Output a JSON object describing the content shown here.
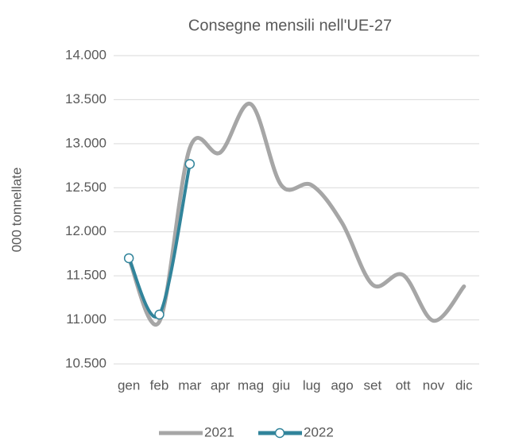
{
  "chart_data": {
    "type": "line",
    "title": "Consegne mensili nell'UE-27",
    "y_label": "000 tonnellate",
    "categories": [
      "gen",
      "feb",
      "mar",
      "apr",
      "mag",
      "giu",
      "lug",
      "ago",
      "set",
      "ott",
      "nov",
      "dic"
    ],
    "series": [
      {
        "name": "2021",
        "color": "#a6a6a6",
        "values": [
          11700,
          10980,
          12950,
          12900,
          13450,
          12530,
          12530,
          12100,
          11400,
          11510,
          10990,
          11380
        ]
      },
      {
        "name": "2022",
        "color": "#31849b",
        "values": [
          11700,
          11060,
          12770,
          null,
          null,
          null,
          null,
          null,
          null,
          null,
          null,
          null
        ]
      }
    ],
    "ylim": [
      10500,
      14000
    ],
    "yticks": [
      {
        "value": 10500,
        "label": "10.500"
      },
      {
        "value": 11000,
        "label": "11.000"
      },
      {
        "value": 11500,
        "label": "11.500"
      },
      {
        "value": 12000,
        "label": "12.000"
      },
      {
        "value": 12500,
        "label": "12.500"
      },
      {
        "value": 13000,
        "label": "13.000"
      },
      {
        "value": 13500,
        "label": "13.500"
      },
      {
        "value": 14000,
        "label": "14.000"
      }
    ],
    "grid": true,
    "legend": "bottom"
  }
}
